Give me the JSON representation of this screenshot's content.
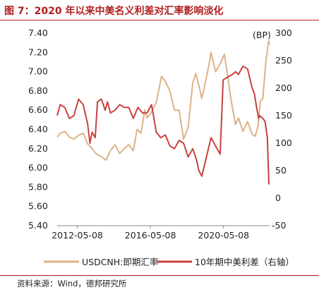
{
  "figure": {
    "title": "图 7：2020 年以来中美名义利差对汇率影响淡化",
    "source": "资料来源：Wind，德邦研究所"
  },
  "colors": {
    "title": "#b0201f",
    "usdcnh": "#dcb287",
    "spread": "#c9413f"
  },
  "chart_data": {
    "type": "line",
    "title": "",
    "xlabel": "",
    "ylabel": "",
    "y2label": "(BP)",
    "xlim": [
      "2011-04-01",
      "2022-11-15"
    ],
    "x_ticks": [
      "2012-05-08",
      "2016-05-08",
      "2020-05-08"
    ],
    "ylim": [
      5.4,
      7.4
    ],
    "y_ticks": [
      "7.40",
      "7.20",
      "7.00",
      "6.80",
      "6.60",
      "6.40",
      "6.20",
      "6.00",
      "5.80",
      "5.60",
      "5.40"
    ],
    "y2lim": [
      -50,
      300
    ],
    "y2_ticks": [
      "300",
      "250",
      "200",
      "150",
      "100",
      "50",
      "0",
      "-50"
    ],
    "grid": false,
    "legend_position": "bottom",
    "series": [
      {
        "name": "USDCNH:即期汇率",
        "axis": "left",
        "x": [
          "2011-04-01",
          "2011-06-01",
          "2011-09-01",
          "2011-12-01",
          "2012-03-01",
          "2012-06-01",
          "2012-09-01",
          "2012-12-01",
          "2013-03-01",
          "2013-06-01",
          "2013-09-01",
          "2013-12-01",
          "2014-03-01",
          "2014-06-01",
          "2014-09-01",
          "2014-12-01",
          "2015-03-01",
          "2015-06-01",
          "2015-08-15",
          "2015-11-01",
          "2016-01-15",
          "2016-03-01",
          "2016-06-01",
          "2016-09-01",
          "2016-12-15",
          "2017-03-01",
          "2017-06-01",
          "2017-09-01",
          "2017-12-01",
          "2018-03-01",
          "2018-06-01",
          "2018-09-01",
          "2018-11-01",
          "2019-01-01",
          "2019-03-01",
          "2019-05-15",
          "2019-08-01",
          "2019-09-01",
          "2019-12-01",
          "2020-03-01",
          "2020-05-25",
          "2020-08-01",
          "2020-10-01",
          "2021-01-01",
          "2021-03-01",
          "2021-06-01",
          "2021-09-01",
          "2021-12-01",
          "2022-02-01",
          "2022-04-01",
          "2022-05-15",
          "2022-07-01",
          "2022-09-01",
          "2022-10-25",
          "2022-11-15"
        ],
        "values": [
          6.32,
          6.36,
          6.38,
          6.32,
          6.3,
          6.34,
          6.36,
          6.25,
          6.2,
          6.14,
          6.12,
          6.08,
          6.18,
          6.24,
          6.15,
          6.2,
          6.24,
          6.18,
          6.4,
          6.36,
          6.6,
          6.52,
          6.58,
          6.68,
          6.95,
          6.9,
          6.8,
          6.6,
          6.6,
          6.3,
          6.42,
          6.88,
          6.98,
          6.86,
          6.72,
          6.9,
          7.1,
          7.2,
          7.0,
          7.08,
          7.18,
          6.95,
          6.72,
          6.45,
          6.52,
          6.38,
          6.48,
          6.35,
          6.33,
          6.44,
          6.7,
          6.72,
          7.1,
          7.32,
          7.28
        ]
      },
      {
        "name": "10年期中美利差（右轴）",
        "axis": "right",
        "x": [
          "2011-04-01",
          "2011-06-01",
          "2011-09-01",
          "2011-12-01",
          "2012-03-01",
          "2012-06-01",
          "2012-09-01",
          "2012-12-01",
          "2013-01-15",
          "2013-03-01",
          "2013-05-01",
          "2013-06-15",
          "2013-09-01",
          "2013-11-15",
          "2014-01-01",
          "2014-03-01",
          "2014-06-01",
          "2014-09-01",
          "2014-12-01",
          "2015-03-01",
          "2015-06-01",
          "2015-09-01",
          "2015-12-01",
          "2016-03-01",
          "2016-06-01",
          "2016-09-01",
          "2016-12-01",
          "2017-03-01",
          "2017-06-01",
          "2017-09-01",
          "2017-12-01",
          "2018-03-01",
          "2018-06-01",
          "2018-09-01",
          "2018-11-15",
          "2019-01-01",
          "2019-03-01",
          "2019-06-01",
          "2019-09-01",
          "2019-12-01",
          "2020-03-01",
          "2020-05-01",
          "2020-08-01",
          "2020-11-01",
          "2021-01-01",
          "2021-03-01",
          "2021-06-01",
          "2021-09-01",
          "2021-12-01",
          "2022-01-15",
          "2022-03-01",
          "2022-04-10",
          "2022-05-01",
          "2022-07-01",
          "2022-08-15",
          "2022-10-01",
          "2022-11-01"
        ],
        "values": [
          150,
          170,
          165,
          145,
          150,
          180,
          170,
          135,
          100,
          120,
          110,
          175,
          180,
          160,
          175,
          155,
          160,
          170,
          165,
          165,
          145,
          165,
          155,
          155,
          170,
          120,
          110,
          115,
          95,
          90,
          105,
          100,
          75,
          90,
          70,
          50,
          40,
          75,
          110,
          95,
          80,
          215,
          220,
          225,
          230,
          225,
          240,
          235,
          200,
          190,
          165,
          145,
          150,
          145,
          140,
          110,
          25
        ]
      }
    ]
  },
  "legend": {
    "items": [
      "USDCNH:即期汇率",
      "10年期中美利差（右轴）"
    ]
  }
}
